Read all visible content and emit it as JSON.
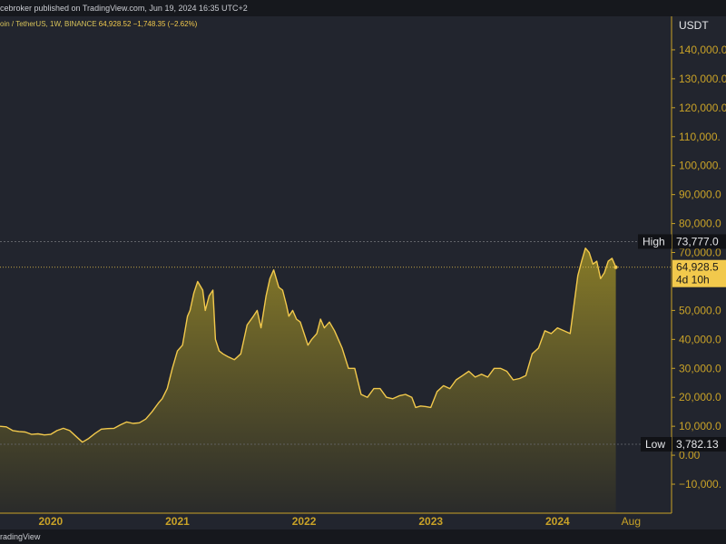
{
  "header": {
    "published": "cebroker published on TradingView.com, Jun 19, 2024 16:35 UTC+2"
  },
  "legend": {
    "symbol": "oin / TetherUS, 1W, BINANCE",
    "price": "64,928.52",
    "change": "−1,748.35 (−2.62%)"
  },
  "footer": {
    "brand": "radingView"
  },
  "colors": {
    "background": "#22252e",
    "line": "#f2c94c",
    "axis": "#c9a227",
    "fill_top": "#8c7f28",
    "fill_bottom": "#2a2b2a"
  },
  "chart_data": {
    "type": "area",
    "ylabel": "USDT",
    "ylim": [
      -15000,
      150000
    ],
    "y_ticks": [
      {
        "value": 140000,
        "label": "140,000.0"
      },
      {
        "value": 130000,
        "label": "130,000.0"
      },
      {
        "value": 120000,
        "label": "120,000.0"
      },
      {
        "value": 110000,
        "label": "110,000."
      },
      {
        "value": 100000,
        "label": "100,000."
      },
      {
        "value": 90000,
        "label": "90,000.0"
      },
      {
        "value": 80000,
        "label": "80,000.0"
      },
      {
        "value": 70000,
        "label": "70,000.0"
      },
      {
        "value": 50000,
        "label": "50,000.0"
      },
      {
        "value": 40000,
        "label": "40,000.0"
      },
      {
        "value": 30000,
        "label": "30,000.0"
      },
      {
        "value": 20000,
        "label": "20,000.0"
      },
      {
        "value": 10000,
        "label": "10,000.0"
      },
      {
        "value": 0,
        "label": "0.00"
      },
      {
        "value": -10000,
        "label": "−10,000."
      }
    ],
    "xlim": [
      2019.6,
      2024.9
    ],
    "x_ticks": [
      {
        "value": 2020.0,
        "label": "2020"
      },
      {
        "value": 2021.0,
        "label": "2021"
      },
      {
        "value": 2022.0,
        "label": "2022"
      },
      {
        "value": 2023.0,
        "label": "2023"
      },
      {
        "value": 2024.0,
        "label": "2024"
      },
      {
        "value": 2024.58,
        "label": "Aug"
      }
    ],
    "high": {
      "label": "High",
      "value": 73777,
      "text": "73,777.0"
    },
    "low": {
      "label": "Low",
      "value": 3782.13,
      "text": "3,782.13"
    },
    "last": {
      "value": 64928.52,
      "text": "64,928.5",
      "countdown": "4d 10h"
    },
    "series": [
      {
        "x": [
          2019.6,
          2019.65,
          2019.7,
          2019.75,
          2019.8,
          2019.85,
          2019.9,
          2019.95,
          2020.0,
          2020.05,
          2020.1,
          2020.15,
          2020.2,
          2020.25,
          2020.3,
          2020.35,
          2020.4,
          2020.45,
          2020.5,
          2020.55,
          2020.6,
          2020.65,
          2020.7,
          2020.75,
          2020.8,
          2020.85,
          2020.88,
          2020.92,
          2020.96,
          2021.0,
          2021.04,
          2021.08,
          2021.1,
          2021.13,
          2021.16,
          2021.2,
          2021.22,
          2021.25,
          2021.28,
          2021.3,
          2021.33,
          2021.36,
          2021.4,
          2021.45,
          2021.5,
          2021.55,
          2021.6,
          2021.63,
          2021.66,
          2021.7,
          2021.73,
          2021.76,
          2021.8,
          2021.83,
          2021.86,
          2021.88,
          2021.91,
          2021.94,
          2021.97,
          2022.0,
          2022.03,
          2022.06,
          2022.1,
          2022.13,
          2022.16,
          2022.2,
          2022.24,
          2022.27,
          2022.3,
          2022.35,
          2022.4,
          2022.45,
          2022.5,
          2022.55,
          2022.6,
          2022.65,
          2022.7,
          2022.75,
          2022.8,
          2022.85,
          2022.88,
          2022.92,
          2022.96,
          2023.0,
          2023.05,
          2023.1,
          2023.15,
          2023.2,
          2023.25,
          2023.3,
          2023.35,
          2023.4,
          2023.45,
          2023.5,
          2023.55,
          2023.6,
          2023.65,
          2023.7,
          2023.75,
          2023.8,
          2023.85,
          2023.9,
          2023.95,
          2024.0,
          2024.05,
          2024.1,
          2024.13,
          2024.16,
          2024.19,
          2024.22,
          2024.25,
          2024.28,
          2024.31,
          2024.34,
          2024.37,
          2024.4,
          2024.43,
          2024.46
        ],
        "y": [
          10000,
          9800,
          8500,
          8200,
          8000,
          7200,
          7400,
          7000,
          7200,
          8500,
          9300,
          8500,
          6500,
          4500,
          5800,
          7500,
          9000,
          9200,
          9300,
          10500,
          11500,
          11000,
          11200,
          12500,
          15000,
          18000,
          19500,
          23000,
          30000,
          36000,
          38000,
          48000,
          50000,
          56000,
          60000,
          57000,
          50000,
          55000,
          57000,
          40000,
          36000,
          35000,
          34000,
          33000,
          35000,
          45000,
          48000,
          50000,
          44000,
          55000,
          61000,
          64000,
          58000,
          57000,
          52000,
          48000,
          50000,
          47000,
          46000,
          42000,
          38000,
          40000,
          42000,
          47000,
          44000,
          46000,
          43000,
          40000,
          37000,
          30000,
          30000,
          21000,
          20000,
          23000,
          23000,
          20000,
          19500,
          20500,
          21000,
          20000,
          16500,
          17000,
          16800,
          16500,
          22000,
          24000,
          23000,
          26000,
          27500,
          29000,
          27000,
          28000,
          27000,
          30000,
          30000,
          29000,
          26000,
          26500,
          27500,
          35000,
          37000,
          43000,
          42000,
          44000,
          43000,
          42000,
          52000,
          62000,
          67000,
          71500,
          70000,
          66000,
          67000,
          61000,
          63000,
          67000,
          68000,
          64928
        ]
      }
    ]
  }
}
